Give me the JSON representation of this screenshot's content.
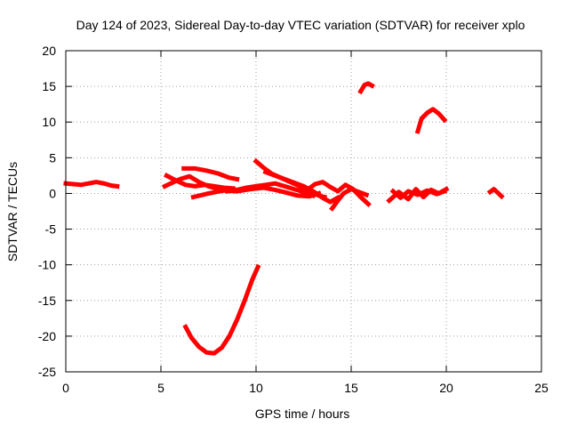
{
  "chart_data": {
    "type": "line",
    "title": "Day 124 of 2023, Sidereal Day-to-day VTEC variation (SDTVAR) for receiver xplo",
    "xlabel": "GPS time / hours",
    "ylabel": "SDTVAR / TECUs",
    "xlim": [
      0,
      25
    ],
    "ylim": [
      -25,
      20
    ],
    "xticks": [
      0,
      5,
      10,
      15,
      20,
      25
    ],
    "yticks": [
      -25,
      -20,
      -15,
      -10,
      -5,
      0,
      5,
      10,
      15,
      20
    ],
    "xtick_labels": [
      "0",
      "5",
      "10",
      "15",
      "20",
      "25"
    ],
    "ytick_labels": [
      "-25",
      "-20",
      "-15",
      "-10",
      "-5",
      "0",
      "5",
      "10",
      "15",
      "20"
    ],
    "grid": true,
    "color": "#ff0000",
    "series": [
      {
        "name": "s1",
        "x": [
          0.0,
          0.4,
          0.8,
          1.2,
          1.6,
          2.0,
          2.4,
          2.7
        ],
        "y": [
          1.4,
          1.3,
          1.2,
          1.4,
          1.6,
          1.4,
          1.1,
          1.0
        ]
      },
      {
        "name": "s2",
        "x": [
          5.2,
          5.6,
          6.0,
          6.5,
          7.0,
          7.5,
          8.0,
          8.5
        ],
        "y": [
          1.0,
          1.5,
          2.0,
          2.4,
          1.6,
          1.0,
          0.6,
          0.4
        ]
      },
      {
        "name": "s3",
        "x": [
          5.3,
          5.8,
          6.3,
          6.8,
          7.3,
          7.8,
          8.3,
          8.8
        ],
        "y": [
          2.5,
          1.8,
          1.2,
          1.0,
          1.2,
          1.0,
          0.8,
          0.7
        ]
      },
      {
        "name": "s4",
        "x": [
          6.2,
          6.8,
          7.4,
          8.0,
          8.6,
          9.0
        ],
        "y": [
          3.5,
          3.5,
          3.2,
          2.8,
          2.2,
          2.0
        ]
      },
      {
        "name": "s5",
        "x": [
          6.7,
          7.5,
          8.3,
          9.0,
          9.7,
          10.4,
          11.0,
          11.6,
          12.2,
          12.8,
          13.3
        ],
        "y": [
          -0.5,
          0.0,
          0.4,
          0.3,
          0.6,
          0.8,
          0.5,
          0.1,
          -0.3,
          -0.4,
          0.0
        ]
      },
      {
        "name": "s6",
        "x": [
          8.5,
          9.0,
          9.5,
          10.0,
          10.5,
          11.0,
          11.5,
          12.0,
          12.5,
          13.0
        ],
        "y": [
          0.3,
          0.5,
          0.8,
          1.0,
          1.2,
          1.4,
          1.0,
          0.6,
          0.2,
          -0.3
        ]
      },
      {
        "name": "s7",
        "x": [
          10.0,
          10.4,
          10.8,
          11.3,
          11.8,
          12.3,
          12.8,
          13.3,
          13.6
        ],
        "y": [
          4.5,
          3.6,
          2.8,
          2.2,
          1.6,
          1.0,
          0.3,
          -0.3,
          -0.5
        ]
      },
      {
        "name": "s8",
        "x": [
          10.5,
          11.0,
          11.5,
          12.0,
          12.5,
          13.0,
          13.5,
          13.9,
          14.3
        ],
        "y": [
          3.0,
          2.5,
          2.0,
          1.5,
          1.0,
          0.3,
          -0.6,
          -1.2,
          -0.6
        ]
      },
      {
        "name": "s9",
        "x": [
          12.7,
          13.1,
          13.5,
          13.9,
          14.3,
          14.7,
          15.1,
          15.5,
          15.9
        ],
        "y": [
          0.5,
          1.3,
          1.6,
          0.9,
          0.3,
          1.2,
          0.6,
          -0.5,
          -1.5
        ]
      },
      {
        "name": "s10",
        "x": [
          14.0,
          14.3,
          14.6,
          15.0,
          15.4,
          15.8
        ],
        "y": [
          -2.1,
          -1.0,
          0.0,
          0.6,
          0.2,
          -0.2
        ]
      },
      {
        "name": "s11",
        "x": [
          15.5,
          15.7,
          15.9,
          16.1
        ],
        "y": [
          14.3,
          15.2,
          15.4,
          15.1
        ]
      },
      {
        "name": "s12",
        "x": [
          17.0,
          17.5,
          18.0,
          18.4,
          18.8,
          19.2,
          19.6,
          20.0
        ],
        "y": [
          -1.0,
          0.2,
          -0.8,
          0.6,
          -0.5,
          0.5,
          0.0,
          0.6
        ]
      },
      {
        "name": "s13",
        "x": [
          17.2,
          17.6,
          18.0,
          18.5,
          19.0,
          19.5,
          19.9
        ],
        "y": [
          0.3,
          -0.6,
          0.3,
          -0.2,
          0.4,
          -0.1,
          0.3
        ]
      },
      {
        "name": "s14",
        "x": [
          18.5,
          18.7,
          19.0,
          19.3,
          19.6,
          19.9
        ],
        "y": [
          8.7,
          10.5,
          11.3,
          11.8,
          11.2,
          10.3
        ]
      },
      {
        "name": "s15",
        "x": [
          22.3,
          22.5,
          22.7,
          22.9
        ],
        "y": [
          0.2,
          0.6,
          0.1,
          -0.4
        ]
      },
      {
        "name": "s16",
        "x": [
          6.3,
          6.6,
          7.0,
          7.4,
          7.8,
          8.2,
          8.6,
          9.0,
          9.4,
          9.8,
          10.1
        ],
        "y": [
          -18.7,
          -20.2,
          -21.5,
          -22.3,
          -22.4,
          -21.6,
          -20.0,
          -17.7,
          -15.0,
          -12.1,
          -10.3
        ]
      }
    ]
  }
}
